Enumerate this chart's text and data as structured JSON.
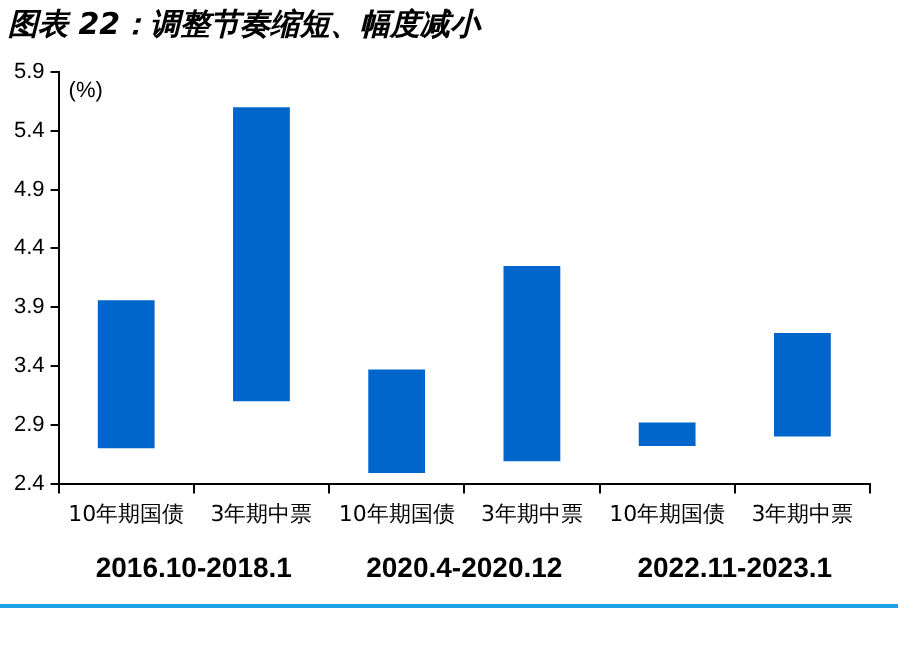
{
  "chart_data": {
    "type": "bar",
    "title": "图表 22：调整节奏缩短、幅度减小",
    "ylabel": "(%)",
    "categories": [
      "10年期国债",
      "3年期中票",
      "10年期国债",
      "3年期中票",
      "10年期国债",
      "3年期中票"
    ],
    "base": [
      2.7,
      3.1,
      2.49,
      2.59,
      2.72,
      2.8
    ],
    "values": [
      1.26,
      2.5,
      0.88,
      1.66,
      0.2,
      0.88
    ],
    "color": "#0066cc",
    "ylim": [
      2.4,
      5.9
    ],
    "yticks": [
      2.4,
      2.9,
      3.4,
      3.9,
      4.4,
      4.9,
      5.4,
      5.9
    ],
    "grid": false,
    "legend": false,
    "annotations": [
      "2016.10-2018.1",
      "2020.4-2020.12",
      "2022.11-2023.1"
    ]
  }
}
